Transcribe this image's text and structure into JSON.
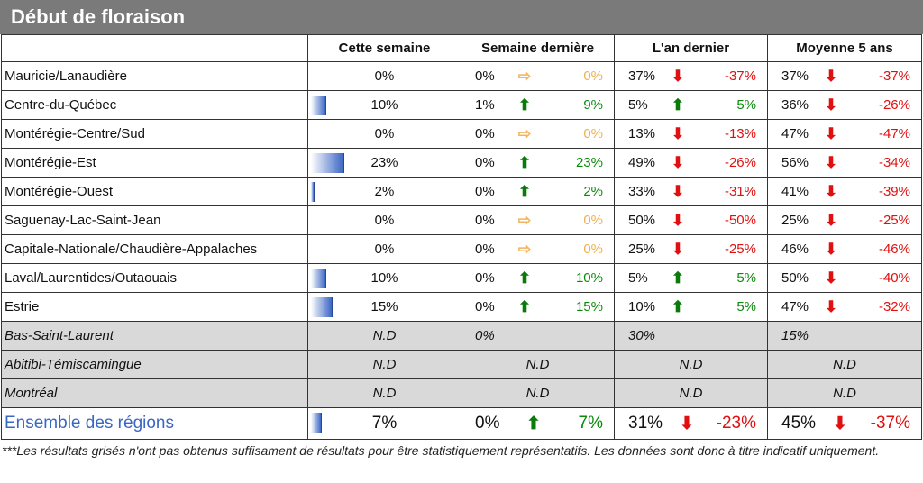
{
  "title": "Début de floraison",
  "headers": [
    "",
    "Cette semaine",
    "Semaine dernière",
    "L'an dernier",
    "Moyenne 5 ans"
  ],
  "rows": [
    {
      "region": "Mauricie/Lanaudière",
      "cw": "0%",
      "cw_pct": 0,
      "lw": {
        "base": "0%",
        "arrow": "⇨",
        "dir": "flat",
        "delta": "0%"
      },
      "ly": {
        "base": "37%",
        "arrow": "⬇",
        "dir": "down",
        "delta": "-37%"
      },
      "avg": {
        "base": "37%",
        "arrow": "⬇",
        "dir": "down",
        "delta": "-37%"
      }
    },
    {
      "region": "Centre-du-Québec",
      "cw": "10%",
      "cw_pct": 10,
      "lw": {
        "base": "1%",
        "arrow": "⬆",
        "dir": "up",
        "delta": "9%"
      },
      "ly": {
        "base": "5%",
        "arrow": "⬆",
        "dir": "up",
        "delta": "5%"
      },
      "avg": {
        "base": "36%",
        "arrow": "⬇",
        "dir": "down",
        "delta": "-26%"
      }
    },
    {
      "region": "Montérégie-Centre/Sud",
      "cw": "0%",
      "cw_pct": 0,
      "lw": {
        "base": "0%",
        "arrow": "⇨",
        "dir": "flat",
        "delta": "0%"
      },
      "ly": {
        "base": "13%",
        "arrow": "⬇",
        "dir": "down",
        "delta": "-13%"
      },
      "avg": {
        "base": "47%",
        "arrow": "⬇",
        "dir": "down",
        "delta": "-47%"
      }
    },
    {
      "region": "Montérégie-Est",
      "cw": "23%",
      "cw_pct": 23,
      "lw": {
        "base": "0%",
        "arrow": "⬆",
        "dir": "up",
        "delta": "23%"
      },
      "ly": {
        "base": "49%",
        "arrow": "⬇",
        "dir": "down",
        "delta": "-26%"
      },
      "avg": {
        "base": "56%",
        "arrow": "⬇",
        "dir": "down",
        "delta": "-34%"
      }
    },
    {
      "region": "Montérégie-Ouest",
      "cw": "2%",
      "cw_pct": 2,
      "lw": {
        "base": "0%",
        "arrow": "⬆",
        "dir": "up",
        "delta": "2%"
      },
      "ly": {
        "base": "33%",
        "arrow": "⬇",
        "dir": "down",
        "delta": "-31%"
      },
      "avg": {
        "base": "41%",
        "arrow": "⬇",
        "dir": "down",
        "delta": "-39%"
      }
    },
    {
      "region": "Saguenay-Lac-Saint-Jean",
      "cw": "0%",
      "cw_pct": 0,
      "lw": {
        "base": "0%",
        "arrow": "⇨",
        "dir": "flat",
        "delta": "0%"
      },
      "ly": {
        "base": "50%",
        "arrow": "⬇",
        "dir": "down",
        "delta": "-50%"
      },
      "avg": {
        "base": "25%",
        "arrow": "⬇",
        "dir": "down",
        "delta": "-25%"
      }
    },
    {
      "region": "Capitale-Nationale/Chaudière-Appalaches",
      "cw": "0%",
      "cw_pct": 0,
      "lw": {
        "base": "0%",
        "arrow": "⇨",
        "dir": "flat",
        "delta": "0%"
      },
      "ly": {
        "base": "25%",
        "arrow": "⬇",
        "dir": "down",
        "delta": "-25%"
      },
      "avg": {
        "base": "46%",
        "arrow": "⬇",
        "dir": "down",
        "delta": "-46%"
      }
    },
    {
      "region": "Laval/Laurentides/Outaouais",
      "cw": "10%",
      "cw_pct": 10,
      "lw": {
        "base": "0%",
        "arrow": "⬆",
        "dir": "up",
        "delta": "10%"
      },
      "ly": {
        "base": "5%",
        "arrow": "⬆",
        "dir": "up",
        "delta": "5%"
      },
      "avg": {
        "base": "50%",
        "arrow": "⬇",
        "dir": "down",
        "delta": "-40%"
      }
    },
    {
      "region": "Estrie",
      "cw": "15%",
      "cw_pct": 15,
      "lw": {
        "base": "0%",
        "arrow": "⬆",
        "dir": "up",
        "delta": "15%"
      },
      "ly": {
        "base": "10%",
        "arrow": "⬆",
        "dir": "up",
        "delta": "5%"
      },
      "avg": {
        "base": "47%",
        "arrow": "⬇",
        "dir": "down",
        "delta": "-32%"
      }
    }
  ],
  "grey_rows": [
    {
      "region": "Bas-Saint-Laurent",
      "cw": "N.D",
      "lw": "0%",
      "ly": "30%",
      "avg": "15%"
    },
    {
      "region": "Abitibi-Témiscamingue",
      "cw": "N.D",
      "lw": "N.D",
      "ly": "N.D",
      "avg": "N.D"
    },
    {
      "region": "Montréal",
      "cw": "N.D",
      "lw": "N.D",
      "ly": "N.D",
      "avg": "N.D"
    }
  ],
  "total": {
    "region": "Ensemble des régions",
    "cw": "7%",
    "cw_pct": 7,
    "lw": {
      "base": "0%",
      "arrow": "⬆",
      "dir": "up",
      "delta": "7%"
    },
    "ly": {
      "base": "31%",
      "arrow": "⬇",
      "dir": "down",
      "delta": "-23%"
    },
    "avg": {
      "base": "45%",
      "arrow": "⬇",
      "dir": "down",
      "delta": "-37%"
    }
  },
  "footnote": "***Les résultats grisés n'ont pas obtenus suffisament de résultats pour être statistiquement représentatifs. Les données sont donc à titre indicatif uniquement.",
  "colors": {
    "title_bg": "#7a7a7a",
    "bar": "#3a66c4",
    "up": "#0a7a0a",
    "down": "#e01010",
    "flat": "#f2b45c",
    "grey_row": "#d9d9d9"
  },
  "icons": {
    "up": "arrow-up-icon",
    "down": "arrow-down-icon",
    "flat": "arrow-right-icon"
  }
}
